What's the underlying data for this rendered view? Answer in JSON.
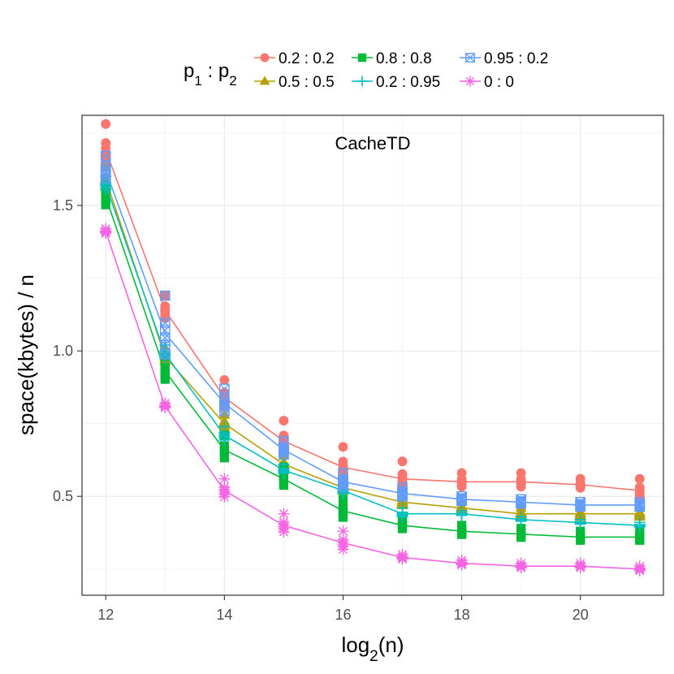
{
  "chart_data": {
    "type": "line",
    "title": "CacheTD",
    "xlabel_base": "log",
    "xlabel_sub": "2",
    "xlabel_tail": "(n)",
    "ylabel": "space(kbytes) / n",
    "legend_title_p": "p",
    "legend_title_sub1": "1",
    "legend_title_sep": " : ",
    "legend_title_sub2": "2",
    "legend_position": "top",
    "xlim": [
      11.6,
      21.4
    ],
    "ylim": [
      0.16,
      1.81
    ],
    "xticks": [
      12,
      14,
      16,
      18,
      20
    ],
    "xtick_labels": [
      "12",
      "14",
      "16",
      "18",
      "20"
    ],
    "yticks": [
      0.5,
      1.0,
      1.5
    ],
    "ytick_labels": [
      "0.5",
      "1.0",
      "1.5"
    ],
    "x": [
      12,
      13,
      14,
      15,
      16,
      17,
      18,
      19,
      20,
      21
    ],
    "series": [
      {
        "name": "0.2 : 0.2",
        "color": "#F8766D",
        "marker": "circle",
        "values": [
          1.69,
          1.14,
          0.84,
          0.69,
          0.6,
          0.56,
          0.55,
          0.55,
          0.54,
          0.52
        ],
        "spread": [
          0.09,
          0.05,
          0.06,
          0.07,
          0.07,
          0.06,
          0.03,
          0.03,
          0.02,
          0.04
        ]
      },
      {
        "name": "0.5 : 0.5",
        "color": "#B79F00",
        "marker": "triangle",
        "values": [
          1.59,
          0.98,
          0.75,
          0.61,
          0.53,
          0.48,
          0.46,
          0.44,
          0.44,
          0.44
        ],
        "spread": [
          0.04,
          0.03,
          0.03,
          0.03,
          0.02,
          0.02,
          0.02,
          0.02,
          0.02,
          0.02
        ]
      },
      {
        "name": "0.8 : 0.8",
        "color": "#00BA38",
        "marker": "square",
        "values": [
          1.53,
          0.93,
          0.66,
          0.56,
          0.45,
          0.4,
          0.38,
          0.37,
          0.36,
          0.36
        ],
        "spread": [
          0.05,
          0.05,
          0.05,
          0.04,
          0.04,
          0.02,
          0.02,
          0.02,
          0.02,
          0.02
        ]
      },
      {
        "name": "0.2 : 0.95",
        "color": "#00BFC4",
        "marker": "plus",
        "values": [
          1.57,
          0.99,
          0.71,
          0.59,
          0.52,
          0.44,
          0.44,
          0.42,
          0.41,
          0.4
        ],
        "spread": [
          0.03,
          0.03,
          0.03,
          0.02,
          0.02,
          0.02,
          0.01,
          0.01,
          0.01,
          0.01
        ]
      },
      {
        "name": "0.95 : 0.2",
        "color": "#619CFF",
        "marker": "boxx",
        "values": [
          1.62,
          1.06,
          0.82,
          0.66,
          0.55,
          0.51,
          0.49,
          0.48,
          0.47,
          0.47
        ],
        "spread": [
          0.05,
          0.13,
          0.05,
          0.03,
          0.03,
          0.02,
          0.01,
          0.01,
          0.01,
          0.01
        ]
      },
      {
        "name": "0 : 0",
        "color": "#F564E3",
        "marker": "star",
        "values": [
          1.41,
          0.81,
          0.52,
          0.4,
          0.34,
          0.29,
          0.27,
          0.26,
          0.26,
          0.25
        ],
        "spread": [
          0.01,
          0.01,
          0.04,
          0.04,
          0.04,
          0.01,
          0.01,
          0.01,
          0.01,
          0.01
        ]
      }
    ]
  }
}
